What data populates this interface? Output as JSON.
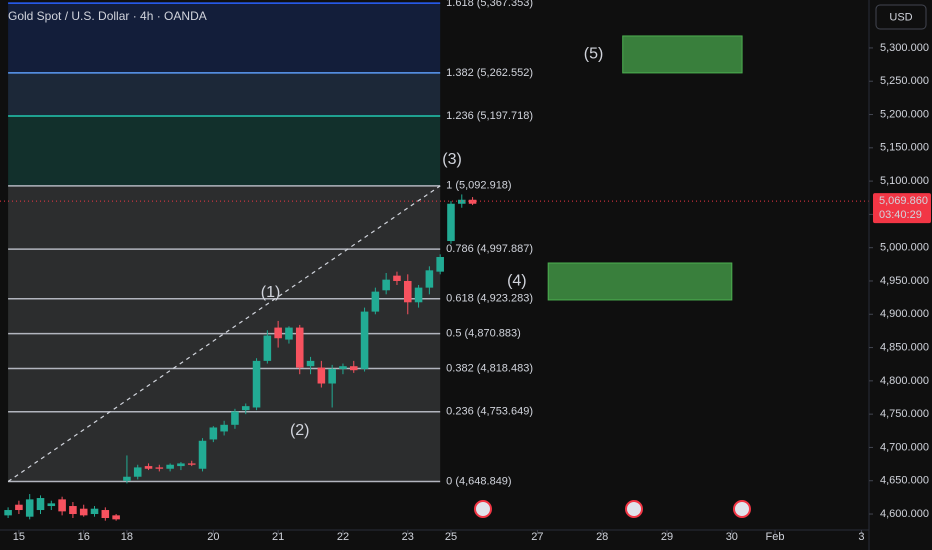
{
  "chart_data": {
    "type": "candlestick",
    "title": "Gold Spot / U.S. Dollar · 4h · OANDA",
    "currency": "USD",
    "up_color": "#22ab94",
    "down_color": "#f7525f",
    "grid": true,
    "xlim": [
      -0.75,
      79.7
    ],
    "ylim": [
      4576,
      5372
    ],
    "xticks": [
      {
        "value": 1,
        "label": "15"
      },
      {
        "value": 7,
        "label": "16"
      },
      {
        "value": 11,
        "label": "18"
      },
      {
        "value": 19,
        "label": "20"
      },
      {
        "value": 25,
        "label": "21"
      },
      {
        "value": 31,
        "label": "22"
      },
      {
        "value": 37,
        "label": "23"
      },
      {
        "value": 41,
        "label": "25"
      },
      {
        "value": 49,
        "label": "27"
      },
      {
        "value": 55,
        "label": "28"
      },
      {
        "value": 61,
        "label": "29"
      },
      {
        "value": 67,
        "label": "30"
      },
      {
        "value": 71,
        "label": "Feb"
      },
      {
        "value": 79,
        "label": "3"
      }
    ],
    "yticks": [
      {
        "value": 4600,
        "label": "4,600.000"
      },
      {
        "value": 4650,
        "label": "4,650.000"
      },
      {
        "value": 4700,
        "label": "4,700.000"
      },
      {
        "value": 4750,
        "label": "4,750.000"
      },
      {
        "value": 4800,
        "label": "4,800.000"
      },
      {
        "value": 4850,
        "label": "4,850.000"
      },
      {
        "value": 4900,
        "label": "4,900.000"
      },
      {
        "value": 4950,
        "label": "4,950.000"
      },
      {
        "value": 5000,
        "label": "5,000.000"
      },
      {
        "value": 5050,
        "label": "5,050.000"
      },
      {
        "value": 5100,
        "label": "5,100.000"
      },
      {
        "value": 5150,
        "label": "5,150.000"
      },
      {
        "value": 5200,
        "label": "5,200.000"
      },
      {
        "value": 5250,
        "label": "5,250.000"
      },
      {
        "value": 5300,
        "label": "5,300.000"
      }
    ],
    "candles": {
      "x": [
        0,
        1,
        2,
        3,
        4,
        5,
        6,
        7,
        8,
        9,
        10,
        11,
        12,
        13,
        14,
        15,
        16,
        17,
        18,
        19,
        20,
        21,
        22,
        23,
        24,
        25,
        26,
        27,
        28,
        29,
        30,
        31,
        32,
        33,
        34,
        35,
        36,
        37,
        38,
        39,
        40,
        41,
        42,
        43
      ],
      "open": [
        4598,
        4614,
        4596,
        4606,
        4612,
        4622,
        4612,
        4608,
        4600,
        4606,
        4598,
        4650,
        4656,
        4672,
        4670,
        4668,
        4672,
        4676,
        4668,
        4712,
        4724,
        4734,
        4756,
        4760,
        4830,
        4880,
        4862,
        4880,
        4822,
        4820,
        4796,
        4818,
        4822,
        4818,
        4904,
        4936,
        4958,
        4950,
        4918,
        4940,
        4964,
        5010,
        5066,
        5072
      ],
      "high": [
        4610,
        4620,
        4630,
        4628,
        4620,
        4626,
        4618,
        4614,
        4612,
        4610,
        4600,
        4688,
        4674,
        4676,
        4674,
        4676,
        4678,
        4680,
        4714,
        4732,
        4740,
        4758,
        4766,
        4834,
        4876,
        4890,
        4882,
        4884,
        4836,
        4830,
        4824,
        4826,
        4830,
        4910,
        4940,
        4962,
        4964,
        4960,
        4944,
        4972,
        4990,
        5070,
        5080,
        5076
      ],
      "low": [
        4594,
        4600,
        4592,
        4600,
        4606,
        4598,
        4594,
        4596,
        4596,
        4590,
        4590,
        4646,
        4652,
        4666,
        4664,
        4664,
        4666,
        4672,
        4664,
        4708,
        4718,
        4728,
        4750,
        4756,
        4826,
        4850,
        4856,
        4810,
        4810,
        4790,
        4760,
        4810,
        4812,
        4814,
        4900,
        4930,
        4944,
        4900,
        4910,
        4930,
        4960,
        5006,
        5060,
        5064
      ],
      "close": [
        4606,
        4606,
        4622,
        4624,
        4616,
        4604,
        4600,
        4598,
        4608,
        4594,
        4592,
        4656,
        4670,
        4668,
        4668,
        4674,
        4676,
        4674,
        4710,
        4730,
        4734,
        4754,
        4762,
        4830,
        4868,
        4864,
        4880,
        4820,
        4830,
        4796,
        4818,
        4822,
        4816,
        4904,
        4934,
        4952,
        4950,
        4918,
        4940,
        4966,
        4986,
        5066,
        5072,
        5066
      ]
    },
    "fib_x": [
      0,
      40
    ],
    "fib_levels": [
      {
        "label": "0 (4,648.849)",
        "price": 4648.849,
        "color": "#b2b5be"
      },
      {
        "label": "0.236 (4,753.649)",
        "price": 4753.649,
        "color": "#b2b5be"
      },
      {
        "label": "0.382 (4,818.483)",
        "price": 4818.483,
        "color": "#b2b5be"
      },
      {
        "label": "0.5 (4,870.883)",
        "price": 4870.883,
        "color": "#b2b5be"
      },
      {
        "label": "0.618 (4,923.283)",
        "price": 4923.283,
        "color": "#b2b5be"
      },
      {
        "label": "0.786 (4,997.887)",
        "price": 4997.887,
        "color": "#b2b5be"
      },
      {
        "label": "1 (5,092.918)",
        "price": 5092.918,
        "color": "#b2b5be"
      },
      {
        "label": "1.236 (5,197.718)",
        "price": 5197.718,
        "color": "#22c7b0"
      },
      {
        "label": "1.382 (5,262.552)",
        "price": 5262.552,
        "color": "#5b9cf6"
      },
      {
        "label": "1.618 (5,367.353)",
        "price": 5367.353,
        "color": "#2962ff"
      }
    ],
    "zones": [
      {
        "label": "(5)",
        "high": 5318,
        "low": 5262.5,
        "x": [
          56.9,
          67.95
        ],
        "label_x": 54.2
      },
      {
        "label": "(4)",
        "high": 4977,
        "low": 4921.5,
        "x": [
          50,
          67
        ],
        "label_x": 47.1
      }
    ],
    "wave_labels": [
      {
        "label": "(1)",
        "x": 24.3,
        "price": 4932
      },
      {
        "label": "(2)",
        "x": 27.0,
        "price": 4725
      },
      {
        "label": "(3)",
        "x": 41.1,
        "price": 5132
      }
    ],
    "zone_color": "#4caf50",
    "last_price": {
      "value": 5069.86,
      "label": "5,069.860",
      "countdown": "03:40:29",
      "color": "#f23645"
    }
  }
}
